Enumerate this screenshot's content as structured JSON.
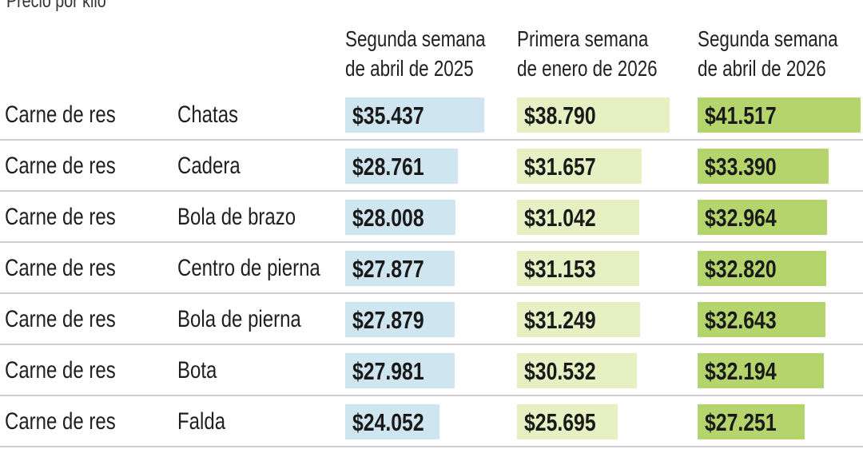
{
  "chart_data": {
    "type": "table",
    "subtitle": "Precio por kilo",
    "columns": [
      {
        "label_lines": [
          "Segunda semana",
          "de abril de 2025"
        ],
        "color": "#cfe6f1"
      },
      {
        "label_lines": [
          "Primera semana",
          "de enero de 2026"
        ],
        "color": "#e7f0c3"
      },
      {
        "label_lines": [
          "Segunda semana",
          "de abril de 2026"
        ],
        "color": "#b6d46c"
      }
    ],
    "rows": [
      {
        "category": "Carne de res",
        "cut": "Chatas",
        "values": [
          35437,
          38790,
          41517
        ],
        "labels": [
          "$35.437",
          "$38.790",
          "$41.517"
        ]
      },
      {
        "category": "Carne de res",
        "cut": "Cadera",
        "values": [
          28761,
          31657,
          33390
        ],
        "labels": [
          "$28.761",
          "$31.657",
          "$33.390"
        ]
      },
      {
        "category": "Carne de res",
        "cut": "Bola de brazo",
        "values": [
          28008,
          31042,
          32964
        ],
        "labels": [
          "$28.008",
          "$31.042",
          "$32.964"
        ]
      },
      {
        "category": "Carne de res",
        "cut": "Centro de pierna",
        "values": [
          27877,
          31153,
          32820
        ],
        "labels": [
          "$27.877",
          "$31.153",
          "$32.820"
        ]
      },
      {
        "category": "Carne de res",
        "cut": "Bola de pierna",
        "values": [
          27879,
          31249,
          32643
        ],
        "labels": [
          "$27.879",
          "$31.249",
          "$32.643"
        ]
      },
      {
        "category": "Carne de res",
        "cut": "Bota",
        "values": [
          27981,
          30532,
          32194
        ],
        "labels": [
          "$27.981",
          "$30.532",
          "$32.194"
        ]
      },
      {
        "category": "Carne de res",
        "cut": "Falda",
        "values": [
          24052,
          25695,
          27251
        ],
        "labels": [
          "$24.052",
          "$25.695",
          "$27.251"
        ]
      }
    ]
  }
}
